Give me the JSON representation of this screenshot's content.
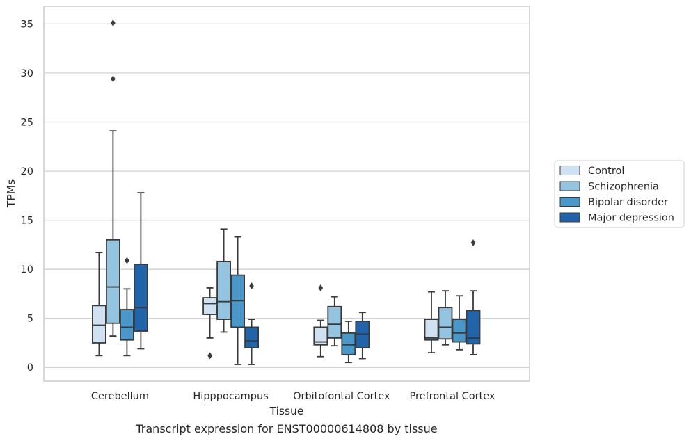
{
  "chart_data": {
    "type": "box",
    "caption": "Transcript expression for ENST00000614808 by tissue",
    "xlabel": "Tissue",
    "ylabel": "TPMs",
    "ylim": [
      -1.4,
      36.8
    ],
    "yticks": [
      0,
      5,
      10,
      15,
      20,
      25,
      30,
      35
    ],
    "grid": "horizontal",
    "legend_placement": "right",
    "categories": [
      "Cerebellum",
      "Hipppocampus",
      "Orbitofontal Cortex",
      "Prefrontal Cortex"
    ],
    "series": [
      {
        "name": "Control",
        "color": "#d0e1f2",
        "boxes": [
          {
            "whislo": 1.2,
            "q1": 2.5,
            "med": 4.3,
            "q3": 6.3,
            "whishi": 11.7,
            "fliers": []
          },
          {
            "whislo": 3.0,
            "q1": 5.4,
            "med": 6.5,
            "q3": 7.1,
            "whishi": 8.1,
            "fliers": [
              1.2
            ]
          },
          {
            "whislo": 1.1,
            "q1": 2.3,
            "med": 2.6,
            "q3": 4.1,
            "whishi": 4.8,
            "fliers": [
              8.1
            ]
          },
          {
            "whislo": 1.5,
            "q1": 2.8,
            "med": 3.0,
            "q3": 4.9,
            "whishi": 7.7,
            "fliers": []
          }
        ]
      },
      {
        "name": "Schizophrenia",
        "color": "#94c4df",
        "boxes": [
          {
            "whislo": 3.2,
            "q1": 4.5,
            "med": 8.2,
            "q3": 13.0,
            "whishi": 24.1,
            "fliers": [
              29.4,
              35.1
            ]
          },
          {
            "whislo": 3.6,
            "q1": 4.9,
            "med": 6.7,
            "q3": 10.8,
            "whishi": 14.1,
            "fliers": []
          },
          {
            "whislo": 2.2,
            "q1": 3.0,
            "med": 4.4,
            "q3": 6.2,
            "whishi": 7.2,
            "fliers": []
          },
          {
            "whislo": 2.3,
            "q1": 2.9,
            "med": 4.1,
            "q3": 6.1,
            "whishi": 7.8,
            "fliers": []
          }
        ]
      },
      {
        "name": "Bipolar disorder",
        "color": "#4a98c9",
        "boxes": [
          {
            "whislo": 1.2,
            "q1": 2.8,
            "med": 4.1,
            "q3": 5.9,
            "whishi": 8.0,
            "fliers": [
              10.9
            ]
          },
          {
            "whislo": 0.3,
            "q1": 4.1,
            "med": 6.8,
            "q3": 9.4,
            "whishi": 13.3,
            "fliers": []
          },
          {
            "whislo": 0.5,
            "q1": 1.3,
            "med": 2.3,
            "q3": 3.5,
            "whishi": 4.7,
            "fliers": []
          },
          {
            "whislo": 1.8,
            "q1": 2.6,
            "med": 3.5,
            "q3": 4.9,
            "whishi": 7.3,
            "fliers": []
          }
        ]
      },
      {
        "name": "Major depression",
        "color": "#2264aa",
        "boxes": [
          {
            "whislo": 1.9,
            "q1": 3.7,
            "med": 6.1,
            "q3": 10.5,
            "whishi": 17.8,
            "fliers": []
          },
          {
            "whislo": 0.3,
            "q1": 2.0,
            "med": 2.7,
            "q3": 4.1,
            "whishi": 4.9,
            "fliers": [
              8.3
            ]
          },
          {
            "whislo": 0.9,
            "q1": 2.0,
            "med": 3.4,
            "q3": 4.7,
            "whishi": 5.6,
            "fliers": []
          },
          {
            "whislo": 1.3,
            "q1": 2.4,
            "med": 3.0,
            "q3": 5.8,
            "whishi": 7.8,
            "fliers": [
              12.7
            ]
          }
        ]
      }
    ]
  }
}
